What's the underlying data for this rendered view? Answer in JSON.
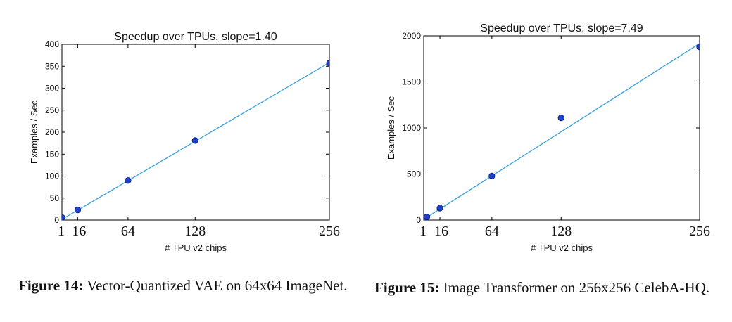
{
  "figures": [
    {
      "caption_label": "Figure 14:",
      "caption_text": "Vector-Quantized VAE on 64x64 ImageNet.",
      "chart_data": {
        "type": "scatter",
        "title": "Speedup over TPUs, slope=1.40",
        "xlabel": "# TPU v2 chips",
        "ylabel": "Examples / Sec",
        "xlim": [
          1,
          256
        ],
        "ylim": [
          0,
          400
        ],
        "xticks": [
          1,
          16,
          64,
          128,
          256
        ],
        "yticks": [
          0,
          50,
          100,
          150,
          200,
          250,
          300,
          350,
          400
        ],
        "x": [
          1,
          16,
          64,
          128,
          256
        ],
        "y": [
          6,
          23,
          90,
          181,
          357
        ],
        "fit_line": {
          "slope": 1.4,
          "intercept": 0
        },
        "grid": false,
        "point_color": "#1f3fd1",
        "line_color": "#3aa0dc"
      }
    },
    {
      "caption_label": "Figure 15:",
      "caption_text": "Image Transformer on 256x256 CelebA-HQ.",
      "chart_data": {
        "type": "scatter",
        "title": "Speedup over TPUs, slope=7.49",
        "xlabel": "# TPU v2 chips",
        "ylabel": "Examples / Sec",
        "xlim": [
          1,
          256
        ],
        "ylim": [
          0,
          2000
        ],
        "xticks": [
          1,
          16,
          64,
          128,
          256
        ],
        "yticks": [
          0,
          500,
          1000,
          1500,
          2000
        ],
        "x": [
          1,
          4,
          16,
          64,
          128,
          256
        ],
        "y": [
          20,
          35,
          130,
          478,
          1110,
          1880
        ],
        "fit_line": {
          "slope": 7.49,
          "intercept": 0
        },
        "grid": false,
        "point_color": "#1f3fd1",
        "line_color": "#3aa0dc"
      }
    }
  ]
}
